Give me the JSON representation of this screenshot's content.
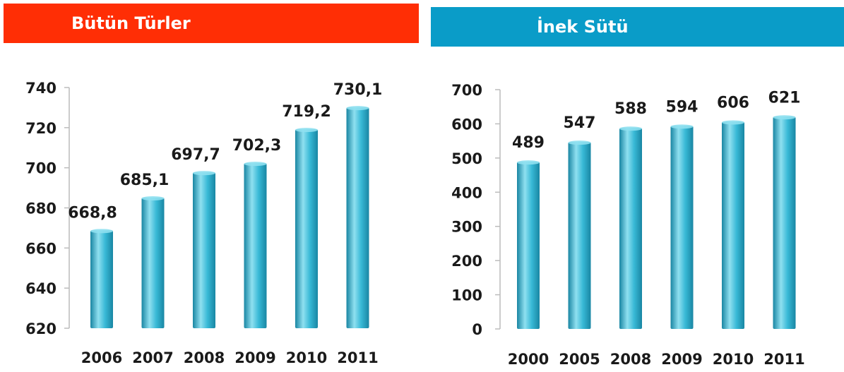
{
  "colors": {
    "left_header_bg": "#ff2e05",
    "right_header_bg": "#0a9cc8",
    "bar_light": "#8fe0f0",
    "bar_mid": "#38b9d6",
    "bar_dark": "#1986a3",
    "text": "#1a1a1a",
    "axis": "#bcbcbc"
  },
  "left_panel": {
    "title": "Bütün Türler"
  },
  "right_panel": {
    "title": "İnek Sütü"
  },
  "chart_data": [
    {
      "type": "bar",
      "title": "Bütün Türler",
      "categories": [
        "2006",
        "2007",
        "2008",
        "2009",
        "2010",
        "2011"
      ],
      "values": [
        668.8,
        685.1,
        697.7,
        702.3,
        719.2,
        730.1
      ],
      "value_labels": [
        "668,8",
        "685,1",
        "697,7",
        "702,3",
        "719,2",
        "730,1"
      ],
      "ylim": [
        620,
        740
      ],
      "y_ticks": [
        620,
        640,
        660,
        680,
        700,
        720,
        740
      ],
      "xlabel": "",
      "ylabel": "",
      "grid": false
    },
    {
      "type": "bar",
      "title": "İnek Sütü",
      "categories": [
        "2000",
        "2005",
        "2008",
        "2009",
        "2010",
        "2011"
      ],
      "values": [
        489,
        547,
        588,
        594,
        606,
        621
      ],
      "value_labels": [
        "489",
        "547",
        "588",
        "594",
        "606",
        "621"
      ],
      "ylim": [
        0,
        700
      ],
      "y_ticks": [
        0,
        100,
        200,
        300,
        400,
        500,
        600,
        700
      ],
      "xlabel": "",
      "ylabel": "",
      "grid": false
    }
  ]
}
